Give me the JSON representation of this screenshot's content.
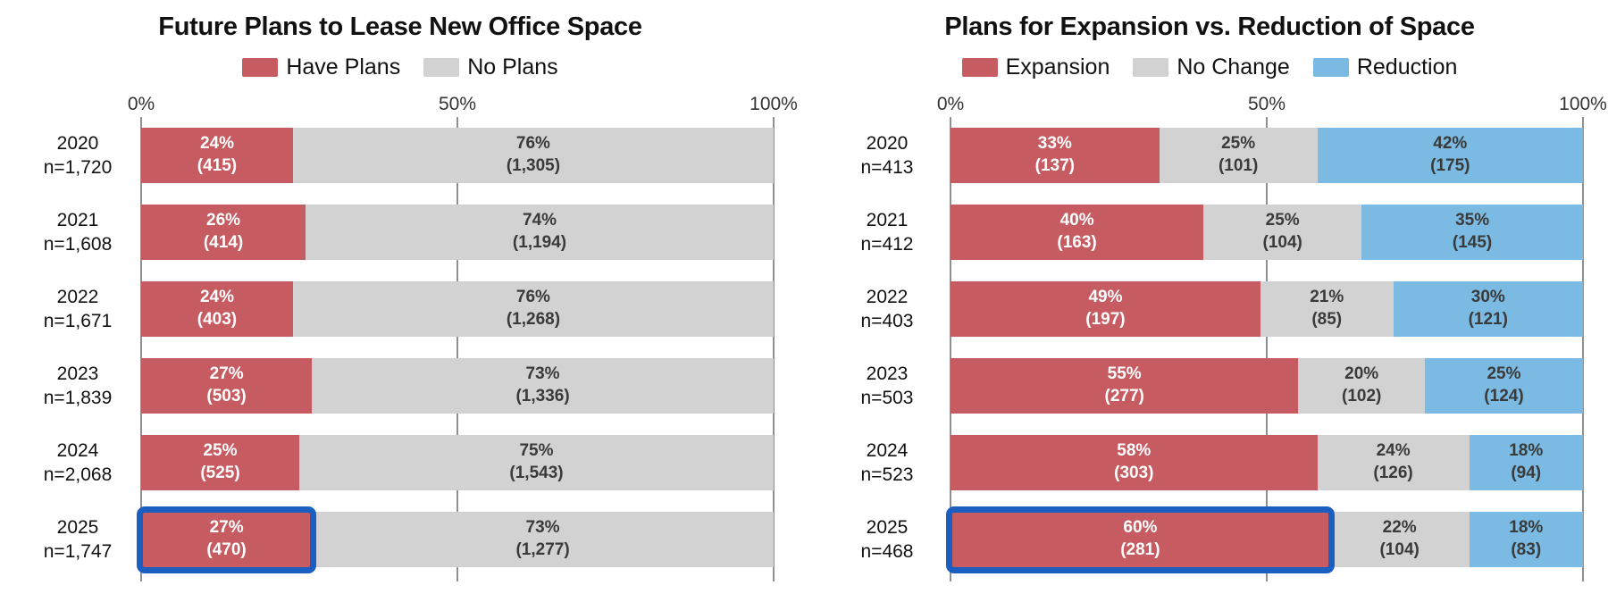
{
  "page": {
    "background": "#ffffff"
  },
  "colors": {
    "expansion_red": "#c65c61",
    "neutral_gray": "#d2d2d2",
    "reduction_blue": "#7bbae2",
    "highlight_border": "#1a5fc0",
    "gridline": "#8d9194",
    "dark_text": "#3a3a3a",
    "light_text": "#ffffff"
  },
  "chart_data": [
    {
      "type": "bar",
      "subtype": "horizontal-stacked",
      "title": "Future Plans to Lease New Office Space",
      "x_ticks": [
        "0%",
        "50%",
        "100%"
      ],
      "xlim": [
        0,
        100
      ],
      "rows": [
        {
          "year": "2020",
          "n": "n=1,720"
        },
        {
          "year": "2021",
          "n": "n=1,608"
        },
        {
          "year": "2022",
          "n": "n=1,671"
        },
        {
          "year": "2023",
          "n": "n=1,839"
        },
        {
          "year": "2024",
          "n": "n=2,068"
        },
        {
          "year": "2025",
          "n": "n=1,747"
        }
      ],
      "series": [
        {
          "name": "Have Plans",
          "color": "#c65c61",
          "text_color": "#ffffff",
          "values": [
            24,
            26,
            24,
            27,
            25,
            27
          ],
          "counts": [
            "(415)",
            "(414)",
            "(403)",
            "(503)",
            "(525)",
            "(470)"
          ]
        },
        {
          "name": "No Plans",
          "color": "#d2d2d2",
          "text_color": "#3a3a3a",
          "values": [
            76,
            74,
            76,
            73,
            75,
            73
          ],
          "counts": [
            "(1,305)",
            "(1,194)",
            "(1,268)",
            "(1,336)",
            "(1,543)",
            "(1,277)"
          ]
        }
      ],
      "highlight": {
        "row_index": 5,
        "series_index": 0,
        "border_color": "#1a5fc0"
      }
    },
    {
      "type": "bar",
      "subtype": "horizontal-stacked",
      "title": "Plans for Expansion vs. Reduction of Space",
      "x_ticks": [
        "0%",
        "50%",
        "100%"
      ],
      "xlim": [
        0,
        100
      ],
      "rows": [
        {
          "year": "2020",
          "n": "n=413"
        },
        {
          "year": "2021",
          "n": "n=412"
        },
        {
          "year": "2022",
          "n": "n=403"
        },
        {
          "year": "2023",
          "n": "n=503"
        },
        {
          "year": "2024",
          "n": "n=523"
        },
        {
          "year": "2025",
          "n": "n=468"
        }
      ],
      "series": [
        {
          "name": "Expansion",
          "color": "#c65c61",
          "text_color": "#ffffff",
          "values": [
            33,
            40,
            49,
            55,
            58,
            60
          ],
          "counts": [
            "(137)",
            "(163)",
            "(197)",
            "(277)",
            "(303)",
            "(281)"
          ]
        },
        {
          "name": "No Change",
          "color": "#d2d2d2",
          "text_color": "#3a3a3a",
          "values": [
            25,
            25,
            21,
            20,
            24,
            22
          ],
          "counts": [
            "(101)",
            "(104)",
            "(85)",
            "(102)",
            "(126)",
            "(104)"
          ]
        },
        {
          "name": "Reduction",
          "color": "#7bbae2",
          "text_color": "#3a3a3a",
          "values": [
            42,
            35,
            30,
            25,
            18,
            18
          ],
          "counts": [
            "(175)",
            "(145)",
            "(121)",
            "(124)",
            "(94)",
            "(83)"
          ]
        }
      ],
      "highlight": {
        "row_index": 5,
        "series_index": 0,
        "border_color": "#1a5fc0"
      }
    }
  ]
}
